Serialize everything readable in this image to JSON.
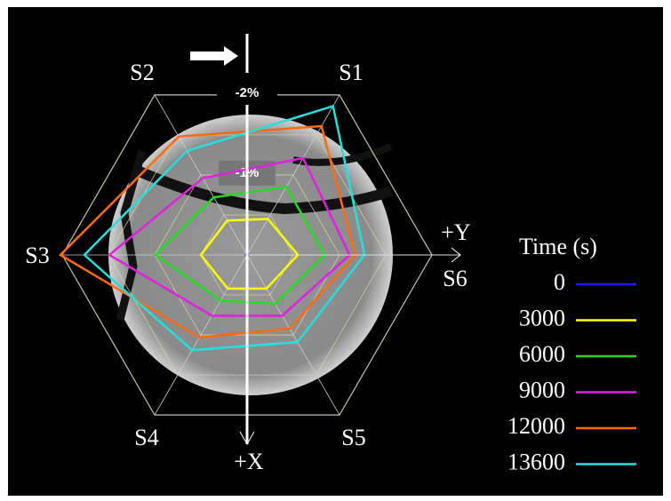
{
  "chart_data": {
    "type": "radar",
    "categories": [
      "S1",
      "S2",
      "S3",
      "S4",
      "S5",
      "S6"
    ],
    "rlim": [
      0,
      -2
    ],
    "rticks": [
      {
        "value": -0.5,
        "label": null
      },
      {
        "value": -1,
        "label": "-1%"
      },
      {
        "value": -1.5,
        "label": null
      },
      {
        "value": -2,
        "label": "-2%"
      }
    ],
    "x_axis_label": "+X",
    "y_axis_label": "+Y",
    "legend_title": "Time (s)",
    "series": [
      {
        "name": "0",
        "color": "#1a1aff",
        "values": [
          0,
          0,
          0,
          0,
          0,
          0
        ]
      },
      {
        "name": "3000",
        "color": "#ffff00",
        "values": [
          -0.45,
          -0.43,
          -0.5,
          -0.42,
          -0.42,
          -0.55
        ]
      },
      {
        "name": "6000",
        "color": "#22dd22",
        "values": [
          -0.85,
          -0.72,
          -0.99,
          -0.57,
          -0.61,
          -0.84
        ]
      },
      {
        "name": "9000",
        "color": "#e020e0",
        "values": [
          -1.21,
          -0.96,
          -1.49,
          -0.76,
          -0.76,
          -1.11
        ]
      },
      {
        "name": "12000",
        "color": "#ff6a10",
        "values": [
          -1.61,
          -1.48,
          -2.02,
          -1.03,
          -0.92,
          -1.17
        ]
      },
      {
        "name": "13600",
        "color": "#22e0e0",
        "values": [
          -1.86,
          -1.3,
          -1.76,
          -1.19,
          -1.09,
          -1.27
        ]
      }
    ]
  }
}
